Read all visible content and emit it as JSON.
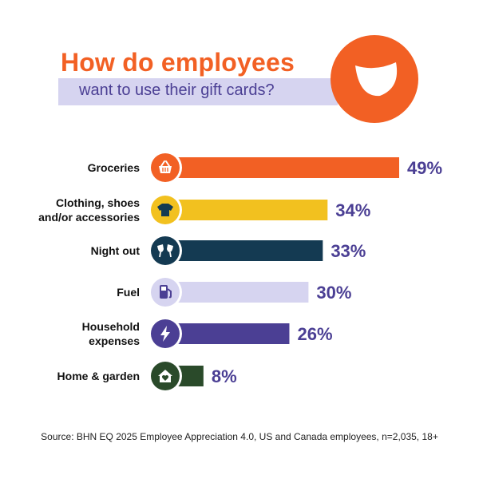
{
  "title": "How do employees",
  "subtitle": "want to use their gift cards?",
  "source": "Source: BHN EQ 2025 Employee Appreciation 4.0, US and Canada employees, n=2,035, 18+",
  "colors": {
    "accent": "#F26024",
    "purple": "#4B3F94",
    "lavender": "#D6D4F0"
  },
  "chart_data": {
    "type": "bar",
    "orientation": "horizontal",
    "xlim": [
      0,
      49
    ],
    "grid": false,
    "legend": "none",
    "categories": [
      {
        "label": [
          "Groceries"
        ],
        "value": 49,
        "value_label": "49%",
        "color": "#F26024",
        "icon": "basket-icon"
      },
      {
        "label": [
          "Clothing, shoes",
          "and/or accessories"
        ],
        "value": 34,
        "value_label": "34%",
        "color": "#F2C11F",
        "icon": "tshirt-icon"
      },
      {
        "label": [
          "Night out"
        ],
        "value": 33,
        "value_label": "33%",
        "color": "#143A52",
        "icon": "cheers-icon"
      },
      {
        "label": [
          "Fuel"
        ],
        "value": 30,
        "value_label": "30%",
        "color": "#D6D4F0",
        "icon": "fuel-pump-icon"
      },
      {
        "label": [
          "Household",
          "expenses"
        ],
        "value": 26,
        "value_label": "26%",
        "color": "#4B3F94",
        "icon": "lightning-icon"
      },
      {
        "label": [
          "Home & garden"
        ],
        "value": 8,
        "value_label": "8%",
        "color": "#2A4A2A",
        "icon": "house-heart-icon"
      }
    ]
  }
}
